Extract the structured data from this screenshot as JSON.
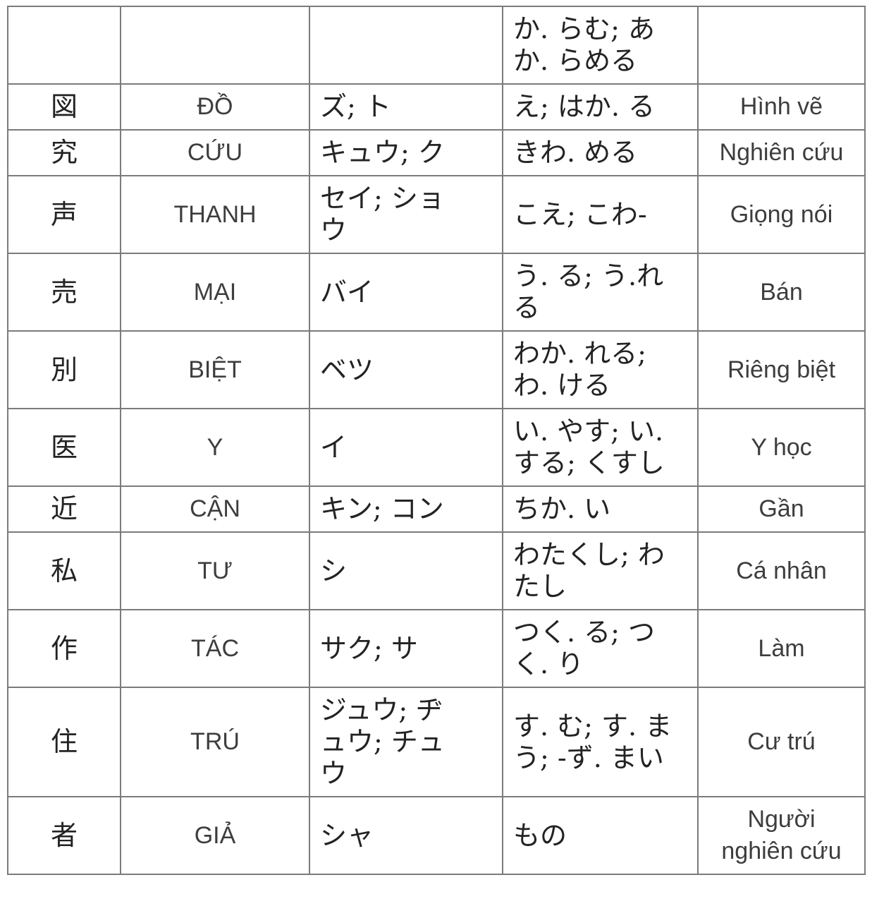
{
  "page": {
    "background_color": "#ffffff",
    "border_color": "#7b7b7b",
    "japanese_text_color": "#232323",
    "latin_text_color": "#3d3d3d"
  },
  "table": {
    "columns": [
      {
        "key": "kanji",
        "name": "kanji-character"
      },
      {
        "key": "han_viet",
        "name": "han-viet-reading"
      },
      {
        "key": "onyomi",
        "name": "onyomi-katakana"
      },
      {
        "key": "kunyomi",
        "name": "kunyomi-hiragana"
      },
      {
        "key": "meaning",
        "name": "vietnamese-meaning"
      }
    ],
    "rows": [
      {
        "kanji": "",
        "han_viet": "",
        "onyomi": "",
        "kunyomi": "か. らむ; あ\nか. らめる",
        "meaning": ""
      },
      {
        "kanji": "図",
        "han_viet": "ĐỒ",
        "onyomi": "ズ; ト",
        "kunyomi": "え; はか. る",
        "meaning": "Hình vẽ"
      },
      {
        "kanji": "究",
        "han_viet": "CỨU",
        "onyomi": "キュウ; ク",
        "kunyomi": "きわ. める",
        "meaning": "Nghiên cứu"
      },
      {
        "kanji": "声",
        "han_viet": "THANH",
        "onyomi": "セイ; ショ\nウ",
        "kunyomi": "こえ; こわ-",
        "meaning": "Giọng nói"
      },
      {
        "kanji": "売",
        "han_viet": "MẠI",
        "onyomi": "バイ",
        "kunyomi": "う. る; う.れ\nる",
        "meaning": "Bán"
      },
      {
        "kanji": "別",
        "han_viet": "BIỆT",
        "onyomi": "ベツ",
        "kunyomi": "わか. れる;\nわ. ける",
        "meaning": "Riêng biệt"
      },
      {
        "kanji": "医",
        "han_viet": "Y",
        "onyomi": "イ",
        "kunyomi": "い. やす; い.\nする; くすし",
        "meaning": "Y học"
      },
      {
        "kanji": "近",
        "han_viet": "CẬN",
        "onyomi": "キン; コン",
        "kunyomi": "ちか. い",
        "meaning": "Gần"
      },
      {
        "kanji": "私",
        "han_viet": "TƯ",
        "onyomi": "シ",
        "kunyomi": "わたくし; わ\nたし",
        "meaning": "Cá nhân"
      },
      {
        "kanji": "作",
        "han_viet": "TÁC",
        "onyomi": "サク; サ",
        "kunyomi": "つく. る; つ\nく. り",
        "meaning": "Làm"
      },
      {
        "kanji": "住",
        "han_viet": "TRÚ",
        "onyomi": "ジュウ; ヂ\nュウ; チュ\nウ",
        "kunyomi": "す. む; す. ま\nう; -ず. まい",
        "meaning": "Cư trú"
      },
      {
        "kanji": "者",
        "han_viet": "GIẢ",
        "onyomi": "シャ",
        "kunyomi": "もの",
        "meaning": "Người\nnghiên cứu"
      }
    ]
  }
}
